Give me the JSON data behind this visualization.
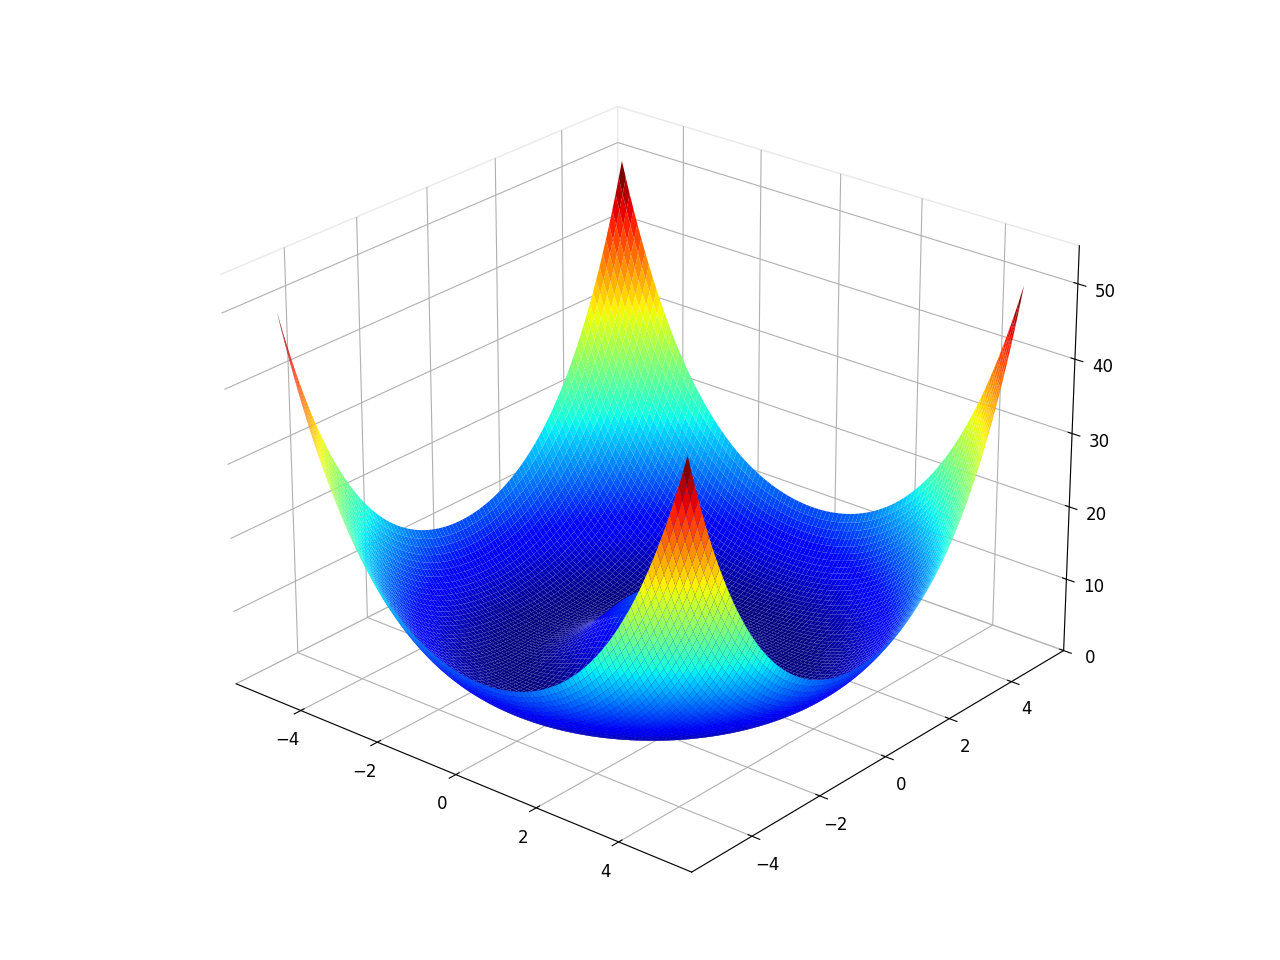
{
  "x_range": [
    -5,
    5
  ],
  "y_range": [
    -5,
    5
  ],
  "n_points": 100,
  "z_label_ticks": [
    0,
    10,
    20,
    30,
    40,
    50
  ],
  "x_ticks": [
    -4,
    -2,
    0,
    2,
    4
  ],
  "y_ticks": [
    -4,
    -2,
    0,
    2,
    4
  ],
  "elev": 25,
  "azim": -50,
  "colormap": "jet",
  "alpha": 1.0,
  "background_color": "#ffffff",
  "A": 10.0,
  "sigma": 0.5
}
